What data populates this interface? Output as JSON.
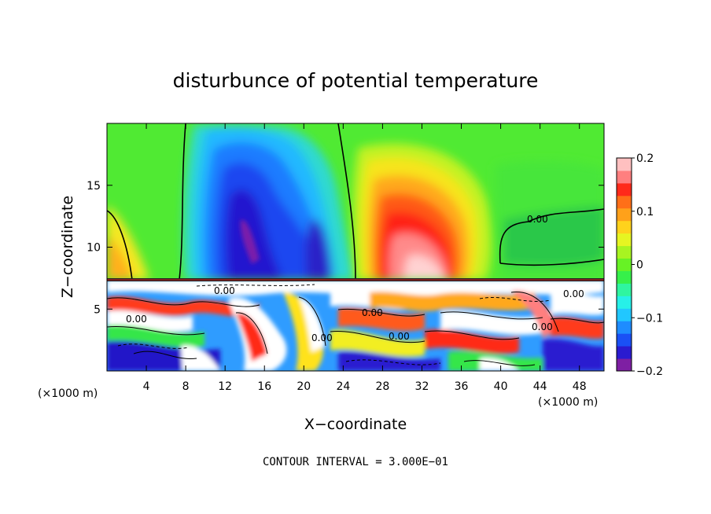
{
  "chart_data": {
    "type": "heatmap",
    "title": "disturbunce of potential temperature",
    "xlabel": "X−coordinate",
    "ylabel": "Z−coordinate",
    "x_unit_left": "(×1000 m)",
    "x_unit_right": "(×1000 m)",
    "note": "CONTOUR INTERVAL = 3.000E−01",
    "xlim": [
      0,
      50.5
    ],
    "ylim": [
      0,
      20
    ],
    "x_ticks": [
      "4",
      "8",
      "12",
      "16",
      "20",
      "24",
      "28",
      "32",
      "36",
      "40",
      "44",
      "48"
    ],
    "y_ticks": [
      "5",
      "10",
      "15"
    ],
    "colorbar": {
      "range": [
        -0.2,
        0.2
      ],
      "tick_labels": [
        "0.2",
        "0.1",
        "0",
        "−0.1",
        "−0.2"
      ],
      "colors": [
        "#7e1fa3",
        "#2a1bd0",
        "#1a50f5",
        "#1e8cff",
        "#21c7ff",
        "#27f0e8",
        "#2ff5a0",
        "#36f04a",
        "#67f225",
        "#a8f421",
        "#e6f522",
        "#ffd21c",
        "#ffa11a",
        "#ff6f18",
        "#ff2a1a",
        "#ff7f7f",
        "#ffc0c0"
      ]
    },
    "contour_labels": [
      "0.00",
      "0.00",
      "0.00",
      "0.00",
      "0.00",
      "0.00",
      "0.00",
      "0.00"
    ],
    "features": [
      {
        "name": "cold anomaly",
        "x_center": 16.5,
        "z_center": 13,
        "min_value": -0.2
      },
      {
        "name": "warm anomaly",
        "x_center": 32,
        "z_center": 11,
        "max_value": 0.2
      },
      {
        "name": "turbulent layer",
        "z_top": 7.3
      }
    ]
  }
}
